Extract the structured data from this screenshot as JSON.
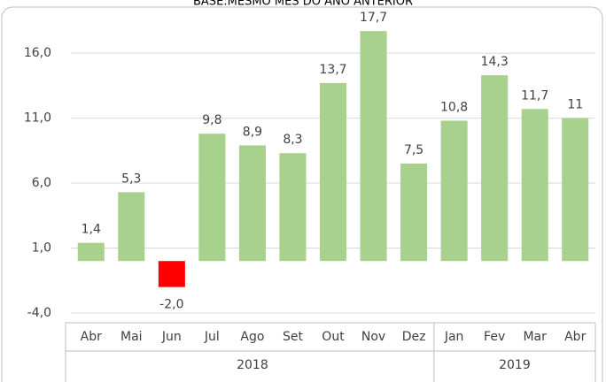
{
  "chart_data": {
    "type": "bar",
    "title": "BASE:MESMO MÊS DO ANO ANTERIOR",
    "categories": [
      "Abr",
      "Mai",
      "Jun",
      "Jul",
      "Ago",
      "Set",
      "Out",
      "Nov",
      "Dez",
      "Jan",
      "Fev",
      "Mar",
      "Abr"
    ],
    "values": [
      1.4,
      5.3,
      -2.0,
      9.8,
      8.9,
      8.3,
      13.7,
      17.7,
      7.5,
      10.8,
      14.3,
      11.7,
      11
    ],
    "value_labels": [
      "1,4",
      "5,3",
      "-2,0",
      "9,8",
      "8,9",
      "8,3",
      "13,7",
      "17,7",
      "7,5",
      "10,8",
      "14,3",
      "11,7",
      "11"
    ],
    "groups": [
      {
        "label": "2018",
        "span": 9
      },
      {
        "label": "2019",
        "span": 4
      }
    ],
    "color": "#a9d18e",
    "negative_color": "#ff0000",
    "ylim": [
      -4,
      19
    ],
    "yticks": [
      {
        "value": -4,
        "label": "-4,0"
      },
      {
        "value": 1,
        "label": "1,0"
      },
      {
        "value": 6,
        "label": "6,0"
      },
      {
        "value": 11,
        "label": "11,0"
      },
      {
        "value": 16,
        "label": "16,0"
      }
    ],
    "grid": true
  }
}
